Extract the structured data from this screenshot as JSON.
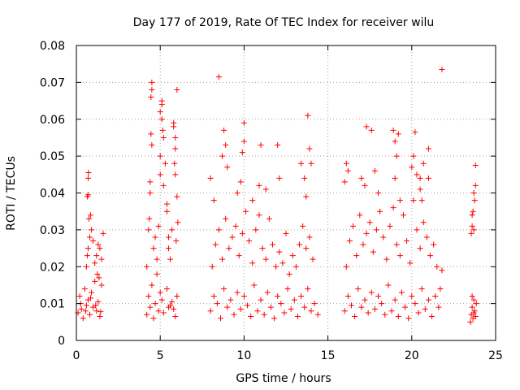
{
  "chart_data": {
    "type": "scatter",
    "title": "Day 177 of 2019, Rate Of TEC Index for receiver wilu",
    "xlabel": "GPS time / hours",
    "ylabel": "ROTI / TECUs",
    "xlim": [
      0,
      25
    ],
    "ylim": [
      0,
      0.08
    ],
    "xticks": [
      0,
      5,
      10,
      15,
      20,
      25
    ],
    "xtick_labels": [
      "0",
      "5",
      "10",
      "15",
      "20",
      "25"
    ],
    "yticks": [
      0,
      0.01,
      0.02,
      0.03,
      0.04,
      0.05,
      0.06,
      0.07,
      0.08
    ],
    "ytick_labels": [
      "0",
      "0.01",
      "0.02",
      "0.03",
      "0.04",
      "0.05",
      "0.06",
      "0.07",
      "0.08"
    ],
    "grid": true,
    "marker": "+",
    "color": "#ff0000",
    "series": [
      {
        "name": "ROTI",
        "points": [
          [
            0.1,
            0.0075
          ],
          [
            0.2,
            0.012
          ],
          [
            0.3,
            0.0085
          ],
          [
            0.4,
            0.006
          ],
          [
            0.5,
            0.014
          ],
          [
            0.6,
            0.0095
          ],
          [
            0.7,
            0.011
          ],
          [
            0.8,
            0.007
          ],
          [
            0.9,
            0.013
          ],
          [
            1.0,
            0.009
          ],
          [
            1.1,
            0.016
          ],
          [
            1.2,
            0.008
          ],
          [
            1.3,
            0.0105
          ],
          [
            1.4,
            0.0065
          ],
          [
            1.5,
            0.015
          ],
          [
            0.25,
            0.01
          ],
          [
            0.55,
            0.008
          ],
          [
            0.85,
            0.0115
          ],
          [
            1.15,
            0.0095
          ],
          [
            1.45,
            0.0078
          ],
          [
            0.6,
            0.02
          ],
          [
            0.65,
            0.023
          ],
          [
            0.7,
            0.025
          ],
          [
            0.8,
            0.028
          ],
          [
            0.9,
            0.03
          ],
          [
            0.75,
            0.033
          ],
          [
            0.85,
            0.034
          ],
          [
            1.0,
            0.027
          ],
          [
            1.1,
            0.021
          ],
          [
            1.2,
            0.023
          ],
          [
            1.3,
            0.026
          ],
          [
            1.4,
            0.025
          ],
          [
            1.5,
            0.022
          ],
          [
            1.6,
            0.029
          ],
          [
            1.25,
            0.018
          ],
          [
            1.35,
            0.017
          ],
          [
            0.65,
            0.039
          ],
          [
            0.7,
            0.0395
          ],
          [
            0.7,
            0.044
          ],
          [
            0.72,
            0.0455
          ],
          [
            4.2,
            0.007
          ],
          [
            4.3,
            0.012
          ],
          [
            4.4,
            0.009
          ],
          [
            4.5,
            0.015
          ],
          [
            4.6,
            0.006
          ],
          [
            4.7,
            0.01
          ],
          [
            4.8,
            0.018
          ],
          [
            4.9,
            0.008
          ],
          [
            5.0,
            0.013
          ],
          [
            5.1,
            0.011
          ],
          [
            5.2,
            0.0075
          ],
          [
            5.4,
            0.014
          ],
          [
            5.6,
            0.0095
          ],
          [
            5.8,
            0.0085
          ],
          [
            6.0,
            0.012
          ],
          [
            5.9,
            0.0065
          ],
          [
            5.7,
            0.0105
          ],
          [
            5.5,
            0.009
          ],
          [
            4.2,
            0.02
          ],
          [
            4.3,
            0.03
          ],
          [
            4.35,
            0.033
          ],
          [
            4.4,
            0.04
          ],
          [
            4.4,
            0.043
          ],
          [
            4.45,
            0.056
          ],
          [
            4.5,
            0.053
          ],
          [
            4.45,
            0.066
          ],
          [
            4.5,
            0.068
          ],
          [
            4.5,
            0.07
          ],
          [
            4.6,
            0.025
          ],
          [
            4.7,
            0.028
          ],
          [
            4.8,
            0.022
          ],
          [
            4.9,
            0.031
          ],
          [
            5.0,
            0.045
          ],
          [
            5.0,
            0.05
          ],
          [
            5.0,
            0.062
          ],
          [
            5.1,
            0.065
          ],
          [
            5.1,
            0.064
          ],
          [
            5.1,
            0.06
          ],
          [
            5.15,
            0.057
          ],
          [
            5.2,
            0.055
          ],
          [
            5.2,
            0.042
          ],
          [
            5.3,
            0.048
          ],
          [
            5.4,
            0.037
          ],
          [
            5.4,
            0.035
          ],
          [
            5.5,
            0.028
          ],
          [
            5.5,
            0.025
          ],
          [
            5.6,
            0.022
          ],
          [
            5.7,
            0.03
          ],
          [
            5.8,
            0.059
          ],
          [
            5.8,
            0.058
          ],
          [
            5.9,
            0.055
          ],
          [
            5.9,
            0.052
          ],
          [
            5.85,
            0.048
          ],
          [
            6.0,
            0.068
          ],
          [
            5.9,
            0.045
          ],
          [
            6.0,
            0.039
          ],
          [
            6.05,
            0.032
          ],
          [
            5.95,
            0.027
          ],
          [
            8.0,
            0.008
          ],
          [
            8.2,
            0.012
          ],
          [
            8.4,
            0.01
          ],
          [
            8.6,
            0.006
          ],
          [
            8.8,
            0.014
          ],
          [
            9.0,
            0.009
          ],
          [
            9.2,
            0.011
          ],
          [
            9.4,
            0.007
          ],
          [
            9.6,
            0.013
          ],
          [
            9.8,
            0.0085
          ],
          [
            10.0,
            0.012
          ],
          [
            10.2,
            0.0095
          ],
          [
            10.4,
            0.0065
          ],
          [
            10.6,
            0.015
          ],
          [
            10.8,
            0.008
          ],
          [
            11.0,
            0.011
          ],
          [
            11.2,
            0.007
          ],
          [
            11.4,
            0.013
          ],
          [
            11.6,
            0.009
          ],
          [
            11.8,
            0.006
          ],
          [
            12.0,
            0.012
          ],
          [
            12.2,
            0.01
          ],
          [
            12.4,
            0.0075
          ],
          [
            12.6,
            0.014
          ],
          [
            12.8,
            0.0085
          ],
          [
            13.0,
            0.011
          ],
          [
            13.2,
            0.0065
          ],
          [
            13.4,
            0.012
          ],
          [
            13.6,
            0.009
          ],
          [
            13.8,
            0.014
          ],
          [
            14.0,
            0.008
          ],
          [
            14.2,
            0.01
          ],
          [
            14.4,
            0.007
          ],
          [
            8.1,
            0.02
          ],
          [
            8.3,
            0.026
          ],
          [
            8.5,
            0.03
          ],
          [
            8.7,
            0.022
          ],
          [
            8.9,
            0.033
          ],
          [
            9.1,
            0.025
          ],
          [
            9.3,
            0.028
          ],
          [
            9.5,
            0.031
          ],
          [
            9.7,
            0.023
          ],
          [
            9.9,
            0.029
          ],
          [
            10.1,
            0.035
          ],
          [
            10.3,
            0.027
          ],
          [
            10.5,
            0.021
          ],
          [
            10.7,
            0.03
          ],
          [
            10.9,
            0.034
          ],
          [
            11.1,
            0.025
          ],
          [
            11.3,
            0.022
          ],
          [
            11.5,
            0.033
          ],
          [
            11.7,
            0.026
          ],
          [
            11.9,
            0.02
          ],
          [
            12.1,
            0.024
          ],
          [
            12.3,
            0.021
          ],
          [
            12.5,
            0.029
          ],
          [
            12.7,
            0.018
          ],
          [
            12.9,
            0.023
          ],
          [
            13.1,
            0.02
          ],
          [
            13.3,
            0.026
          ],
          [
            13.5,
            0.031
          ],
          [
            13.7,
            0.025
          ],
          [
            13.9,
            0.028
          ],
          [
            14.1,
            0.022
          ],
          [
            8.0,
            0.044
          ],
          [
            8.2,
            0.038
          ],
          [
            8.7,
            0.05
          ],
          [
            8.8,
            0.057
          ],
          [
            8.9,
            0.053
          ],
          [
            9.0,
            0.047
          ],
          [
            9.6,
            0.04
          ],
          [
            9.8,
            0.043
          ],
          [
            9.9,
            0.051
          ],
          [
            10.0,
            0.054
          ],
          [
            10.0,
            0.059
          ],
          [
            10.5,
            0.038
          ],
          [
            10.9,
            0.042
          ],
          [
            11.0,
            0.053
          ],
          [
            11.3,
            0.041
          ],
          [
            12.0,
            0.053
          ],
          [
            12.1,
            0.044
          ],
          [
            13.4,
            0.048
          ],
          [
            13.6,
            0.044
          ],
          [
            13.7,
            0.039
          ],
          [
            13.9,
            0.052
          ],
          [
            14.0,
            0.048
          ],
          [
            13.8,
            0.061
          ],
          [
            8.5,
            0.0715
          ],
          [
            16.0,
            0.008
          ],
          [
            16.2,
            0.012
          ],
          [
            16.4,
            0.0095
          ],
          [
            16.6,
            0.0065
          ],
          [
            16.8,
            0.014
          ],
          [
            17.0,
            0.009
          ],
          [
            17.2,
            0.011
          ],
          [
            17.4,
            0.0075
          ],
          [
            17.6,
            0.013
          ],
          [
            17.8,
            0.0085
          ],
          [
            18.0,
            0.012
          ],
          [
            18.2,
            0.01
          ],
          [
            18.4,
            0.007
          ],
          [
            18.6,
            0.015
          ],
          [
            18.8,
            0.008
          ],
          [
            19.0,
            0.011
          ],
          [
            19.2,
            0.0065
          ],
          [
            19.4,
            0.013
          ],
          [
            19.6,
            0.009
          ],
          [
            19.8,
            0.006
          ],
          [
            20.0,
            0.012
          ],
          [
            20.2,
            0.01
          ],
          [
            20.4,
            0.0075
          ],
          [
            20.6,
            0.014
          ],
          [
            20.8,
            0.0085
          ],
          [
            21.0,
            0.011
          ],
          [
            21.2,
            0.0065
          ],
          [
            21.4,
            0.012
          ],
          [
            21.6,
            0.009
          ],
          [
            21.7,
            0.014
          ],
          [
            16.1,
            0.02
          ],
          [
            16.3,
            0.027
          ],
          [
            16.5,
            0.031
          ],
          [
            16.7,
            0.023
          ],
          [
            16.9,
            0.034
          ],
          [
            17.1,
            0.026
          ],
          [
            17.3,
            0.029
          ],
          [
            17.5,
            0.032
          ],
          [
            17.7,
            0.024
          ],
          [
            17.9,
            0.03
          ],
          [
            18.1,
            0.035
          ],
          [
            18.3,
            0.028
          ],
          [
            18.5,
            0.022
          ],
          [
            18.7,
            0.031
          ],
          [
            18.9,
            0.036
          ],
          [
            19.1,
            0.026
          ],
          [
            19.3,
            0.023
          ],
          [
            19.5,
            0.034
          ],
          [
            19.7,
            0.027
          ],
          [
            19.9,
            0.021
          ],
          [
            20.1,
            0.038
          ],
          [
            20.3,
            0.03
          ],
          [
            20.5,
            0.025
          ],
          [
            20.7,
            0.032
          ],
          [
            20.9,
            0.028
          ],
          [
            21.1,
            0.023
          ],
          [
            21.3,
            0.026
          ],
          [
            21.5,
            0.02
          ],
          [
            16.0,
            0.043
          ],
          [
            16.1,
            0.048
          ],
          [
            16.2,
            0.046
          ],
          [
            17.0,
            0.044
          ],
          [
            17.2,
            0.042
          ],
          [
            17.3,
            0.058
          ],
          [
            17.6,
            0.057
          ],
          [
            17.8,
            0.046
          ],
          [
            18.0,
            0.04
          ],
          [
            18.9,
            0.057
          ],
          [
            19.0,
            0.054
          ],
          [
            19.1,
            0.05
          ],
          [
            19.2,
            0.056
          ],
          [
            19.0,
            0.044
          ],
          [
            19.3,
            0.038
          ],
          [
            20.0,
            0.047
          ],
          [
            20.1,
            0.05
          ],
          [
            20.2,
            0.0565
          ],
          [
            20.3,
            0.045
          ],
          [
            20.5,
            0.041
          ],
          [
            20.5,
            0.044
          ],
          [
            20.6,
            0.038
          ],
          [
            20.7,
            0.048
          ],
          [
            21.0,
            0.052
          ],
          [
            21.0,
            0.044
          ],
          [
            21.8,
            0.019
          ],
          [
            21.8,
            0.0735
          ],
          [
            23.5,
            0.005
          ],
          [
            23.55,
            0.007
          ],
          [
            23.6,
            0.009
          ],
          [
            23.65,
            0.006
          ],
          [
            23.7,
            0.011
          ],
          [
            23.75,
            0.008
          ],
          [
            23.8,
            0.0065
          ],
          [
            23.85,
            0.01
          ],
          [
            23.6,
            0.012
          ],
          [
            23.7,
            0.0075
          ],
          [
            23.55,
            0.029
          ],
          [
            23.6,
            0.031
          ],
          [
            23.65,
            0.035
          ],
          [
            23.7,
            0.04
          ],
          [
            23.75,
            0.038
          ],
          [
            23.8,
            0.042
          ],
          [
            23.8,
            0.0475
          ],
          [
            23.6,
            0.034
          ],
          [
            23.7,
            0.03
          ]
        ]
      }
    ]
  }
}
